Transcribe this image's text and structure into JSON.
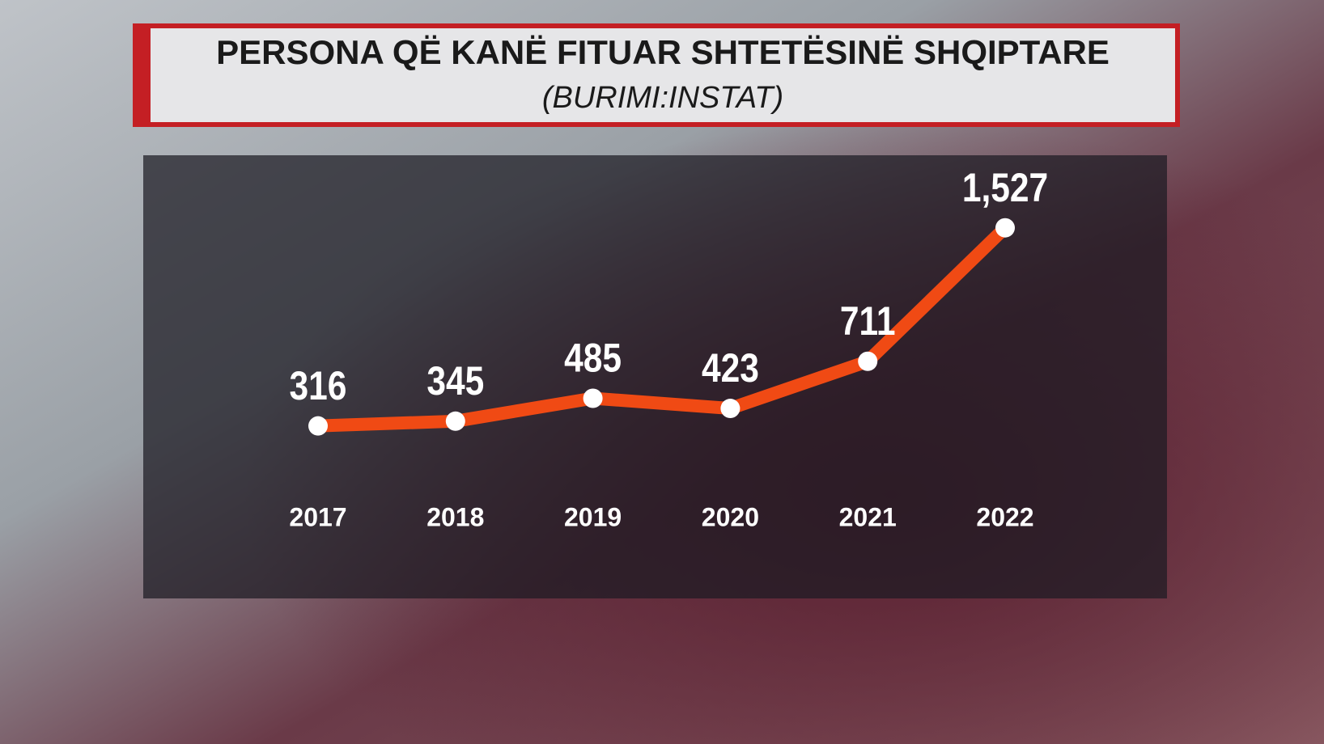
{
  "chart_data": {
    "type": "line",
    "title": "PERSONA QË KANË FITUAR SHTETËSINË SHQIPTARE",
    "subtitle": "(BURIMI:INSTAT)",
    "categories": [
      "2017",
      "2018",
      "2019",
      "2020",
      "2021",
      "2022"
    ],
    "values": [
      316,
      345,
      485,
      423,
      711,
      1527
    ],
    "value_labels": [
      "316",
      "345",
      "485",
      "423",
      "711",
      "1,527"
    ],
    "color": "#f04a14"
  }
}
